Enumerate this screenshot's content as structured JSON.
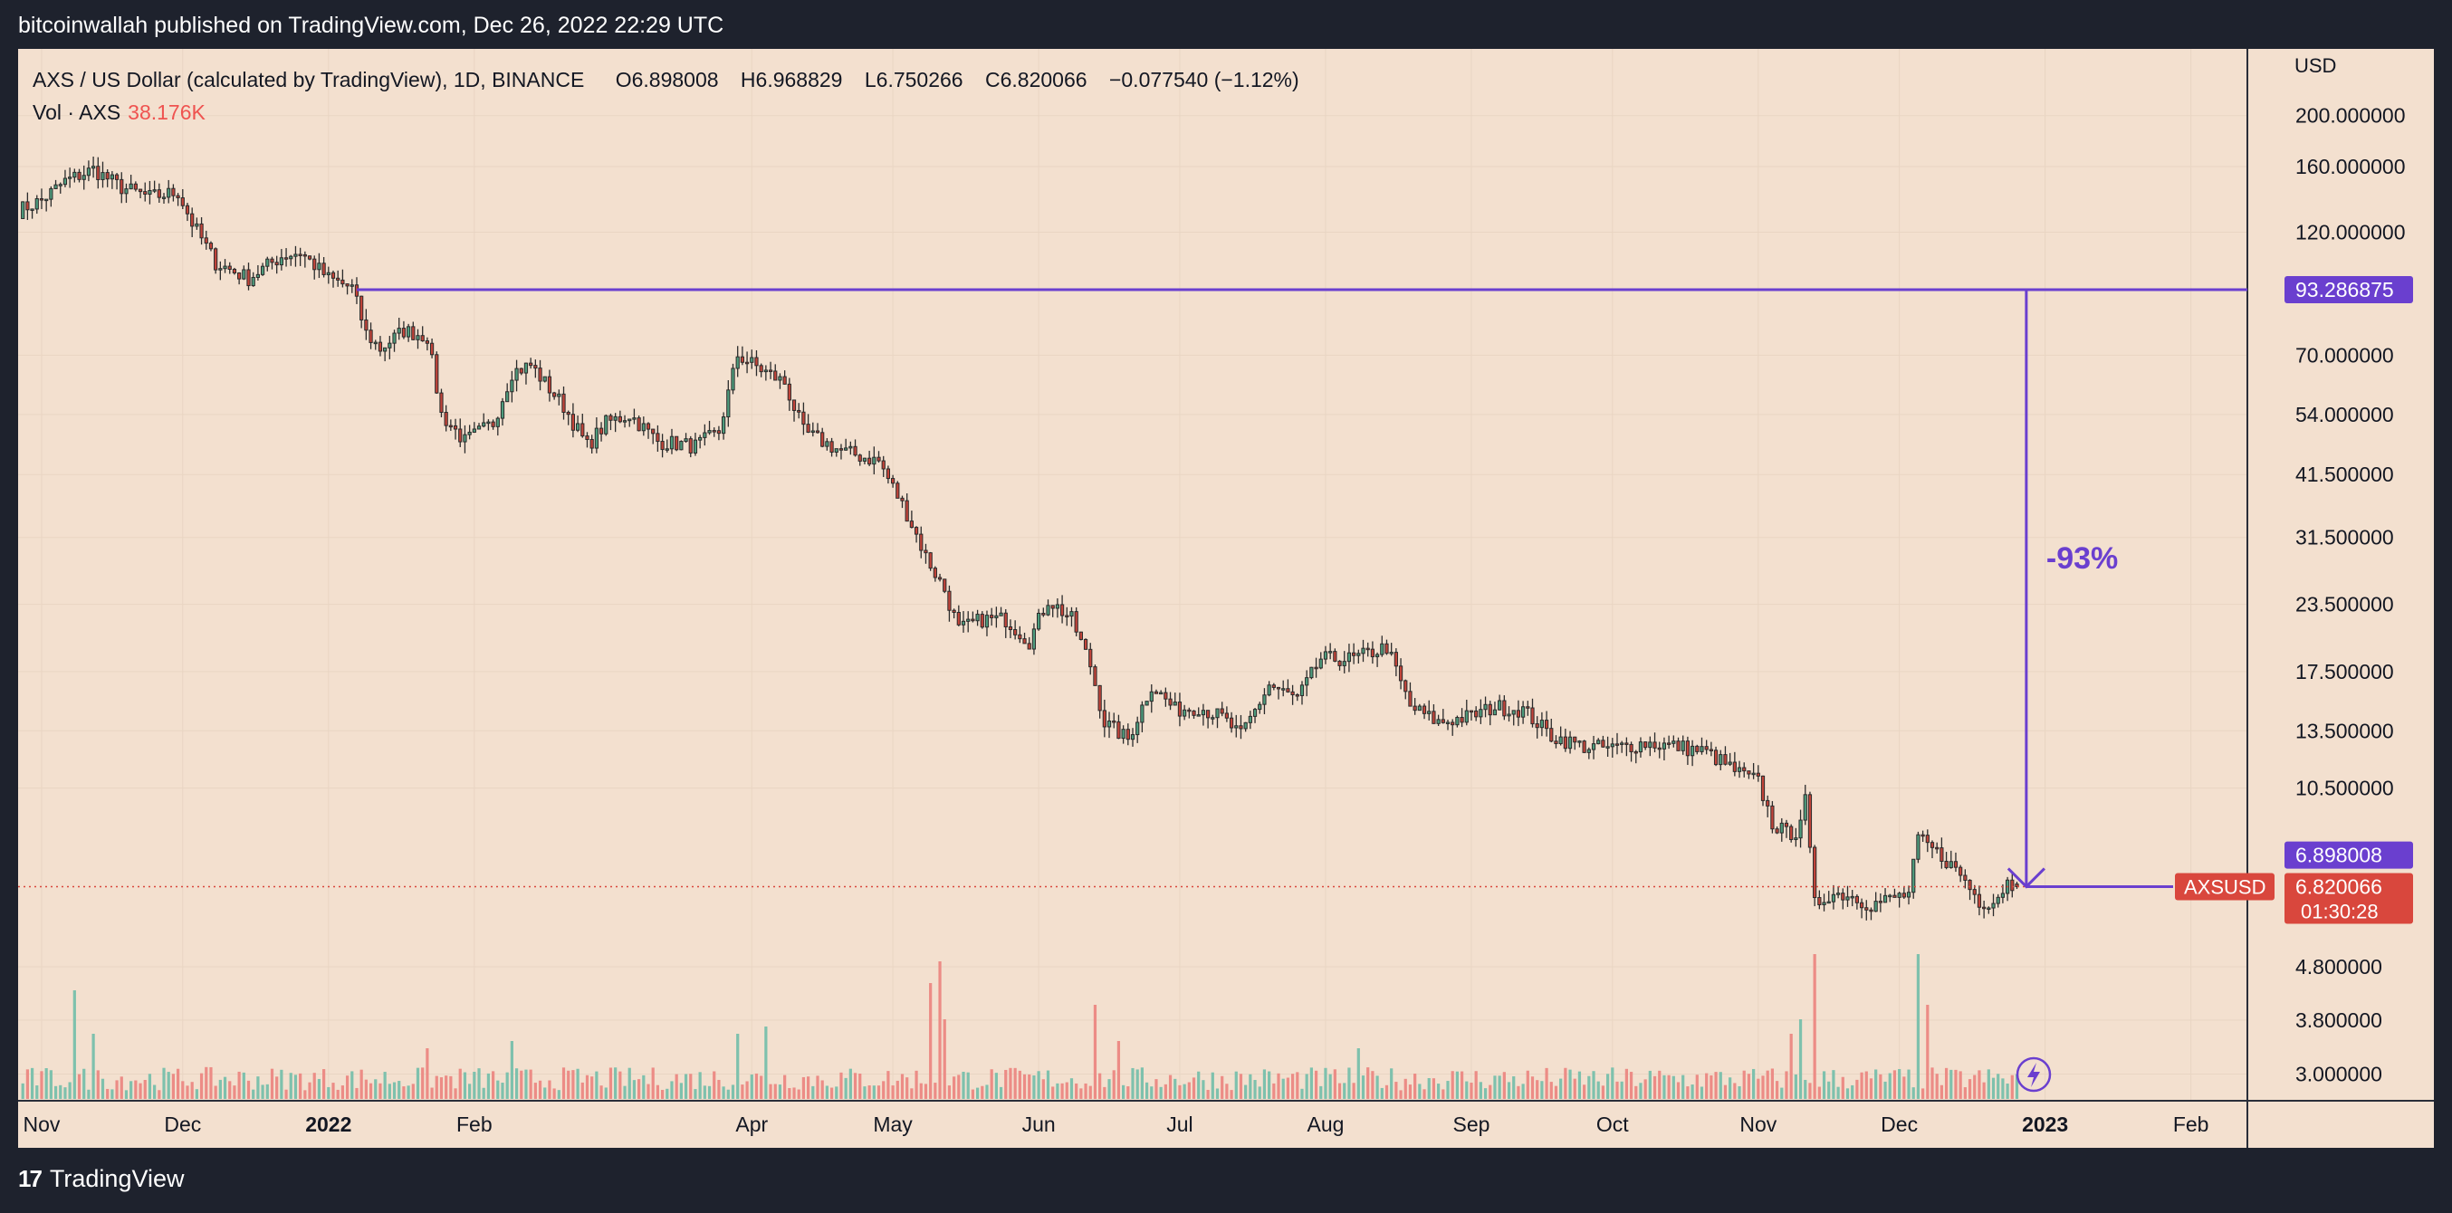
{
  "header": {
    "published_by": "bitcoinwallah published on TradingView.com, Dec 26, 2022 22:29 UTC"
  },
  "legend": {
    "symbol_line": "AXS / US Dollar (calculated by TradingView), 1D, BINANCE",
    "open_label": "O",
    "open": "6.898008",
    "high_label": "H",
    "high": "6.968829",
    "low_label": "L",
    "low": "6.750266",
    "close_label": "C",
    "close": "6.820066",
    "change": "−0.077540 (−1.12%)",
    "volume_label": "Vol · AXS",
    "volume_value": "38.176K"
  },
  "footer": {
    "brand": "TradingView"
  },
  "colors": {
    "up": "#4e9c7d",
    "down": "#c2443a",
    "vol_up": "#7ec1ad",
    "vol_down": "#ec8c86",
    "annotation": "#6a3fcf",
    "last_price": "#d9473d",
    "background": "#f3e0cf"
  },
  "chart_data": {
    "type": "candlestick",
    "symbol": "AXSUSD",
    "interval": "1D",
    "exchange": "BINANCE",
    "y_axis": {
      "currency_label": "USD",
      "scale": "log",
      "ticks": [
        200,
        160,
        120,
        70,
        54,
        41.5,
        31.5,
        23.5,
        17.5,
        13.5,
        10.5,
        4.8,
        3.8,
        3.0
      ],
      "tick_labels": [
        "200.000000",
        "160.000000",
        "120.000000",
        "70.000000",
        "54.000000",
        "41.500000",
        "31.500000",
        "23.500000",
        "17.500000",
        "13.500000",
        "10.500000",
        "4.800000",
        "3.800000",
        "3.000000"
      ]
    },
    "x_axis": {
      "labels": [
        "Nov",
        "Dec",
        "2022",
        "Feb",
        "Apr",
        "May",
        "Jun",
        "Jul",
        "Aug",
        "Sep",
        "Oct",
        "Nov",
        "Dec",
        "2023",
        "Feb"
      ],
      "bold_labels": [
        "2022",
        "2023"
      ],
      "label_dates": [
        "2021-11-01",
        "2021-12-01",
        "2022-01-01",
        "2022-02-01",
        "2022-04-01",
        "2022-05-01",
        "2022-06-01",
        "2022-07-01",
        "2022-08-01",
        "2022-09-01",
        "2022-10-01",
        "2022-11-01",
        "2022-12-01",
        "2023-01-01",
        "2023-02-01"
      ],
      "start_date": "2021-10-27",
      "end_date": "2023-02-13"
    },
    "price_waypoints": [
      [
        "2021-10-27",
        132
      ],
      [
        "2021-11-01",
        138
      ],
      [
        "2021-11-06",
        150
      ],
      [
        "2021-11-12",
        158
      ],
      [
        "2021-11-18",
        146
      ],
      [
        "2021-11-24",
        140
      ],
      [
        "2021-11-30",
        143
      ],
      [
        "2021-12-03",
        125
      ],
      [
        "2021-12-08",
        105
      ],
      [
        "2021-12-15",
        98
      ],
      [
        "2021-12-22",
        108
      ],
      [
        "2021-12-26",
        110
      ],
      [
        "2022-01-01",
        98
      ],
      [
        "2022-01-06",
        94
      ],
      [
        "2022-01-09",
        77
      ],
      [
        "2022-01-12",
        72
      ],
      [
        "2022-01-17",
        78
      ],
      [
        "2022-01-22",
        76
      ],
      [
        "2022-01-25",
        54
      ],
      [
        "2022-01-30",
        48
      ],
      [
        "2022-02-05",
        52
      ],
      [
        "2022-02-09",
        65
      ],
      [
        "2022-02-13",
        67
      ],
      [
        "2022-02-20",
        56
      ],
      [
        "2022-02-25",
        47
      ],
      [
        "2022-03-01",
        52
      ],
      [
        "2022-03-06",
        54
      ],
      [
        "2022-03-12",
        48
      ],
      [
        "2022-03-20",
        47
      ],
      [
        "2022-03-25",
        50
      ],
      [
        "2022-03-29",
        70
      ],
      [
        "2022-04-04",
        65
      ],
      [
        "2022-04-08",
        62
      ],
      [
        "2022-04-12",
        50
      ],
      [
        "2022-04-20",
        46
      ],
      [
        "2022-04-28",
        44
      ],
      [
        "2022-05-04",
        35
      ],
      [
        "2022-05-08",
        29
      ],
      [
        "2022-05-12",
        25
      ],
      [
        "2022-05-15",
        21
      ],
      [
        "2022-05-20",
        22
      ],
      [
        "2022-05-25",
        22
      ],
      [
        "2022-05-30",
        20
      ],
      [
        "2022-06-03",
        24
      ],
      [
        "2022-06-08",
        22
      ],
      [
        "2022-06-12",
        18
      ],
      [
        "2022-06-15",
        14
      ],
      [
        "2022-06-20",
        13
      ],
      [
        "2022-06-25",
        16.5
      ],
      [
        "2022-06-30",
        14.8
      ],
      [
        "2022-07-05",
        15
      ],
      [
        "2022-07-10",
        14.3
      ],
      [
        "2022-07-14",
        13.2
      ],
      [
        "2022-07-20",
        16.5
      ],
      [
        "2022-07-26",
        15.5
      ],
      [
        "2022-07-31",
        18.5
      ],
      [
        "2022-08-07",
        18.5
      ],
      [
        "2022-08-14",
        19.5
      ],
      [
        "2022-08-19",
        15
      ],
      [
        "2022-08-25",
        14
      ],
      [
        "2022-09-01",
        14.4
      ],
      [
        "2022-09-06",
        15
      ],
      [
        "2022-09-12",
        14.8
      ],
      [
        "2022-09-18",
        13.2
      ],
      [
        "2022-09-25",
        12.6
      ],
      [
        "2022-10-01",
        12.5
      ],
      [
        "2022-10-08",
        12.8
      ],
      [
        "2022-10-15",
        12.6
      ],
      [
        "2022-10-21",
        12.3
      ],
      [
        "2022-10-28",
        11.2
      ],
      [
        "2022-11-01",
        10.8
      ],
      [
        "2022-11-04",
        9.0
      ],
      [
        "2022-11-07",
        8.6
      ],
      [
        "2022-11-09",
        8.7
      ],
      [
        "2022-11-11",
        9.9
      ],
      [
        "2022-11-13",
        6.3
      ],
      [
        "2022-11-16",
        6.6
      ],
      [
        "2022-11-20",
        6.6
      ],
      [
        "2022-11-25",
        6.3
      ],
      [
        "2022-11-30",
        6.5
      ],
      [
        "2022-12-03",
        6.6
      ],
      [
        "2022-12-05",
        8.4
      ],
      [
        "2022-12-10",
        7.8
      ],
      [
        "2022-12-14",
        7.2
      ],
      [
        "2022-12-18",
        6.4
      ],
      [
        "2022-12-21",
        6.4
      ],
      [
        "2022-12-24",
        6.95
      ],
      [
        "2022-12-26",
        6.82
      ]
    ],
    "volume_spikes": [
      [
        "2021-11-08",
        0.75
      ],
      [
        "2021-11-12",
        0.45
      ],
      [
        "2022-01-22",
        0.35
      ],
      [
        "2022-02-09",
        0.4
      ],
      [
        "2022-03-29",
        0.45
      ],
      [
        "2022-04-04",
        0.5
      ],
      [
        "2022-05-09",
        0.8
      ],
      [
        "2022-05-11",
        0.95
      ],
      [
        "2022-05-12",
        0.55
      ],
      [
        "2022-06-13",
        0.65
      ],
      [
        "2022-06-18",
        0.4
      ],
      [
        "2022-08-08",
        0.35
      ],
      [
        "2022-11-08",
        0.45
      ],
      [
        "2022-11-10",
        0.55
      ],
      [
        "2022-11-13",
        1.0
      ],
      [
        "2022-12-05",
        1.0
      ],
      [
        "2022-12-07",
        0.65
      ]
    ],
    "volume_label": "Vol · AXS",
    "volume_value": "38.176K",
    "horizontal_level": {
      "value": 93.286875,
      "label": "93.286875",
      "from_date": "2022-01-07"
    },
    "measure_annotation": {
      "text": "-93%",
      "from_value": 93.286875,
      "to_value": 6.82,
      "date": "2022-12-28"
    },
    "end_marker_label": "6.898008",
    "last_price": {
      "value": 6.820066,
      "label": "6.820066",
      "countdown": "01:30:28",
      "symbol_tag": "AXSUSD"
    },
    "ohlc": {
      "open": 6.898008,
      "high": 6.968829,
      "low": 6.750266,
      "close": 6.820066
    }
  }
}
